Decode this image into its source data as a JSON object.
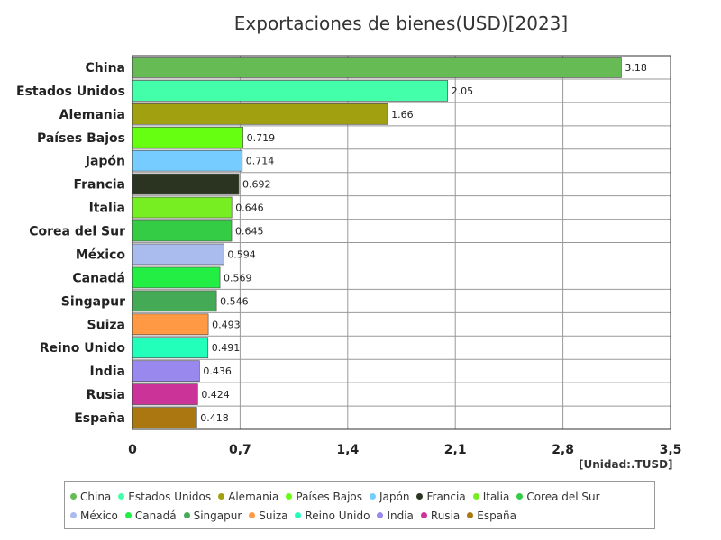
{
  "title": "Exportaciones de bienes(USD)[2023]",
  "unit_label": "[Unidad:.TUSD]",
  "chart_data": {
    "type": "bar",
    "orientation": "horizontal",
    "title": "Exportaciones de bienes(USD)[2023]",
    "xlim": [
      0,
      3.5
    ],
    "x_ticks": [
      "0",
      "0,7",
      "1,4",
      "2,1",
      "2,8",
      "3,5"
    ],
    "x_tick_values": [
      0,
      0.7,
      1.4,
      2.1,
      2.8,
      3.5
    ],
    "grid": true,
    "legend_position": "bottom",
    "categories": [
      "China",
      "Estados Unidos",
      "Alemania",
      "Países Bajos",
      "Japón",
      "Francia",
      "Italia",
      "Corea del Sur",
      "México",
      "Canadá",
      "Singapur",
      "Suiza",
      "Reino Unido",
      "India",
      "Rusia",
      "España"
    ],
    "values": [
      3.18,
      2.05,
      1.66,
      0.719,
      0.714,
      0.692,
      0.646,
      0.645,
      0.594,
      0.569,
      0.546,
      0.493,
      0.491,
      0.436,
      0.424,
      0.418
    ],
    "value_labels": [
      "3.18",
      "2.05",
      "1.66",
      "0.719",
      "0.714",
      "0.692",
      "0.646",
      "0.645",
      "0.594",
      "0.569",
      "0.546",
      "0.493",
      "0.491",
      "0.436",
      "0.424",
      "0.418"
    ],
    "colors": [
      "#66bb55",
      "#44ffaa",
      "#a0a010",
      "#66ff11",
      "#77ccff",
      "#2a3420",
      "#77ee22",
      "#33cc44",
      "#aabbee",
      "#22ee44",
      "#44aa55",
      "#ff9944",
      "#22ffbb",
      "#9988ee",
      "#cc3399",
      "#aa7711"
    ]
  }
}
